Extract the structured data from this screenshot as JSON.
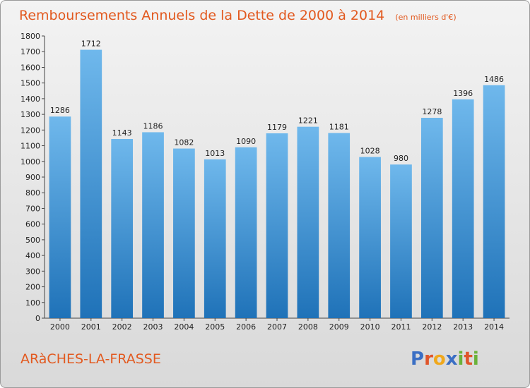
{
  "title": "Remboursements Annuels de la Dette de 2000 à 2014",
  "unit_note": "(en milliers d'€)",
  "commune": "ARàCHES-LA-FRASSE",
  "logo": {
    "letters": [
      "P",
      "r",
      "o",
      "x",
      "i",
      "t",
      "i"
    ],
    "colors": [
      "#3b6fc4",
      "#e0552a",
      "#f0a81c",
      "#3b6fc4",
      "#6ab23a",
      "#e0552a",
      "#6ab23a"
    ]
  },
  "colors": {
    "bar_light": "#6fb8ec",
    "bar_dark": "#1f72b8",
    "title": "#e2591f"
  },
  "chart_data": {
    "type": "bar",
    "title": "Remboursements Annuels de la Dette de 2000 à 2014",
    "categories": [
      "2000",
      "2001",
      "2002",
      "2003",
      "2004",
      "2005",
      "2006",
      "2007",
      "2008",
      "2009",
      "2010",
      "2011",
      "2012",
      "2013",
      "2014"
    ],
    "values": [
      1286,
      1712,
      1143,
      1186,
      1082,
      1013,
      1090,
      1179,
      1221,
      1181,
      1028,
      980,
      1278,
      1396,
      1486
    ],
    "ylim": [
      0,
      1800
    ],
    "yticks": [
      0,
      100,
      200,
      300,
      400,
      500,
      600,
      700,
      800,
      900,
      1000,
      1100,
      1200,
      1300,
      1400,
      1500,
      1600,
      1700,
      1800
    ],
    "grid": false,
    "xlabel": "",
    "ylabel": ""
  }
}
